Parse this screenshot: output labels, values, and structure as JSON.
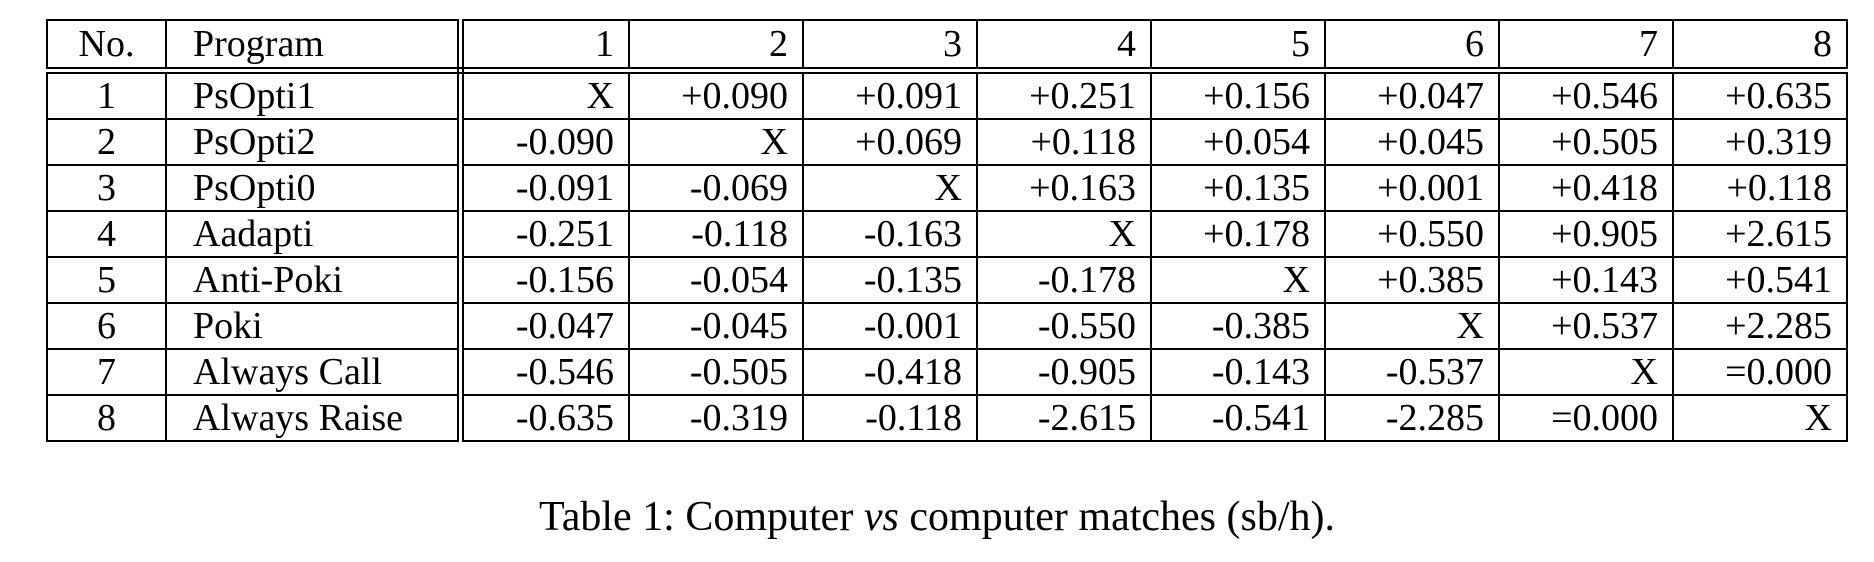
{
  "table": {
    "headers": [
      "No.",
      "Program",
      "1",
      "2",
      "3",
      "4",
      "5",
      "6",
      "7",
      "8"
    ],
    "rows": [
      {
        "no": "1",
        "program": "PsOpti1",
        "cells": [
          "X",
          "+0.090",
          "+0.091",
          "+0.251",
          "+0.156",
          "+0.047",
          "+0.546",
          "+0.635"
        ]
      },
      {
        "no": "2",
        "program": "PsOpti2",
        "cells": [
          "-0.090",
          "X",
          "+0.069",
          "+0.118",
          "+0.054",
          "+0.045",
          "+0.505",
          "+0.319"
        ]
      },
      {
        "no": "3",
        "program": "PsOpti0",
        "cells": [
          "-0.091",
          "-0.069",
          "X",
          "+0.163",
          "+0.135",
          "+0.001",
          "+0.418",
          "+0.118"
        ]
      },
      {
        "no": "4",
        "program": "Aadapti",
        "cells": [
          "-0.251",
          "-0.118",
          "-0.163",
          "X",
          "+0.178",
          "+0.550",
          "+0.905",
          "+2.615"
        ]
      },
      {
        "no": "5",
        "program": "Anti-Poki",
        "cells": [
          "-0.156",
          "-0.054",
          "-0.135",
          "-0.178",
          "X",
          "+0.385",
          "+0.143",
          "+0.541"
        ]
      },
      {
        "no": "6",
        "program": "Poki",
        "cells": [
          "-0.047",
          "-0.045",
          "-0.001",
          "-0.550",
          "-0.385",
          "X",
          "+0.537",
          "+2.285"
        ]
      },
      {
        "no": "7",
        "program": "Always Call",
        "cells": [
          "-0.546",
          "-0.505",
          "-0.418",
          "-0.905",
          "-0.143",
          "-0.537",
          "X",
          "=0.000"
        ]
      },
      {
        "no": "8",
        "program": "Always Raise",
        "cells": [
          "-0.635",
          "-0.319",
          "-0.118",
          "-2.615",
          "-0.541",
          "-2.285",
          "=0.000",
          "X"
        ]
      }
    ]
  },
  "caption": {
    "prefix": "Table 1: Computer ",
    "emphasis": "vs",
    "suffix": " computer matches (sb/h)."
  }
}
